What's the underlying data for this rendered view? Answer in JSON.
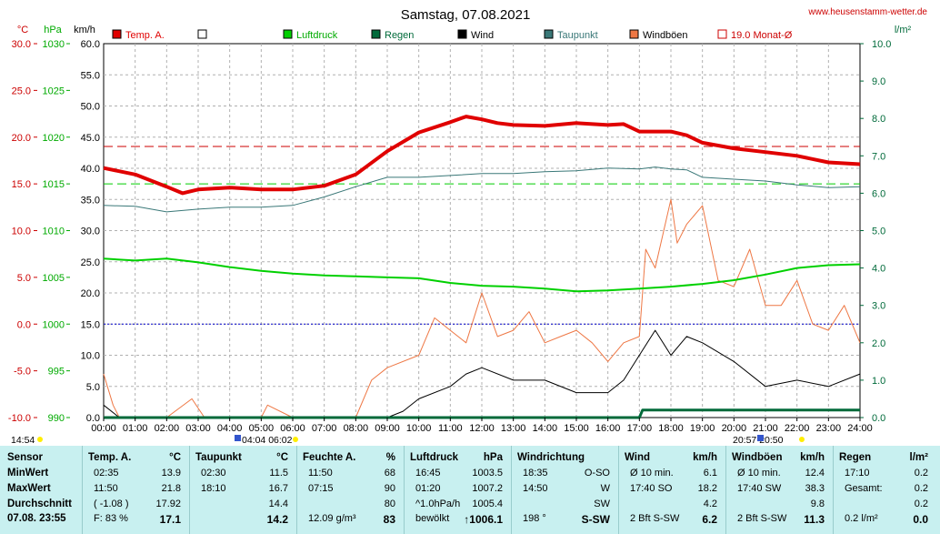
{
  "title": "Samstag, 07.08.2021",
  "site": "www.heusenstamm-wetter.de",
  "units": {
    "left1": "°C",
    "left2": "hPa",
    "left3": "km/h",
    "right": "l/m²"
  },
  "legend": [
    {
      "label": "Temp. A.",
      "color": "#e00000"
    },
    {
      "label": "",
      "color": "#ffffff"
    },
    {
      "label": "Luftdruck",
      "color": "#00d000"
    },
    {
      "label": "Regen",
      "color": "#006a3a"
    },
    {
      "label": "Wind",
      "color": "#000000"
    },
    {
      "label": "Taupunkt",
      "color": "#3a7878"
    },
    {
      "label": "Windböen",
      "color": "#ee7744"
    },
    {
      "label": "19.0 Monat-Ø",
      "color": "#cc0000"
    }
  ],
  "markers": {
    "left": "14:54",
    "sun": "04:04 06:02",
    "right": "20:57 20:50"
  },
  "chart_data": {
    "type": "line",
    "x_ticks": [
      "00:00",
      "01:00",
      "02:00",
      "03:00",
      "04:00",
      "05:00",
      "06:00",
      "07:00",
      "08:00",
      "09:00",
      "10:00",
      "11:00",
      "12:00",
      "13:00",
      "14:00",
      "15:00",
      "16:00",
      "17:00",
      "18:00",
      "19:00",
      "20:00",
      "21:00",
      "22:00",
      "23:00",
      "24:00"
    ],
    "axes": {
      "temp_c": {
        "ticks": [
          "30.0",
          "25.0",
          "20.0",
          "15.0",
          "10.0",
          "5.0",
          "0.0",
          "-5.0",
          "-10.0"
        ],
        "range": [
          -10,
          30
        ]
      },
      "pressure_hpa": {
        "ticks": [
          "1030",
          "1025",
          "1020",
          "1015",
          "1010",
          "1005",
          "1000",
          "995",
          "990"
        ],
        "range": [
          990,
          1030
        ]
      },
      "wind_kmh": {
        "ticks": [
          "60.0",
          "55.0",
          "50.0",
          "45.0",
          "40.0",
          "35.0",
          "30.0",
          "25.0",
          "20.0",
          "15.0",
          "10.0",
          "5.0",
          "0.0"
        ],
        "range": [
          0,
          60
        ]
      },
      "rain_lm2": {
        "ticks": [
          "10.0",
          "9.0",
          "8.0",
          "7.0",
          "6.0",
          "5.0",
          "4.0",
          "3.0",
          "2.0",
          "1.0",
          "0.0"
        ],
        "range": [
          0,
          10
        ]
      }
    },
    "reference_lines": [
      {
        "name": "19.0 Monat-Ø",
        "temp_c": 19.0
      },
      {
        "temp_c": 15.0
      },
      {
        "temp_c": 0.0
      }
    ],
    "series": [
      {
        "name": "Temp. A.",
        "unit": "°C",
        "x": [
          0,
          1,
          2,
          2.5,
          3,
          4,
          5,
          6,
          7,
          8,
          9,
          10,
          11,
          11.5,
          12,
          12.5,
          13,
          14,
          15,
          16,
          16.5,
          17,
          18,
          18.5,
          19,
          20,
          21,
          22,
          23,
          24
        ],
        "y": [
          16.7,
          16.0,
          14.7,
          14.0,
          14.4,
          14.6,
          14.4,
          14.4,
          14.8,
          16.0,
          18.5,
          20.5,
          21.6,
          22.2,
          21.9,
          21.5,
          21.3,
          21.2,
          21.5,
          21.3,
          21.4,
          20.6,
          20.6,
          20.2,
          19.4,
          18.8,
          18.4,
          18.0,
          17.3,
          17.1
        ]
      },
      {
        "name": "Taupunkt",
        "unit": "°C",
        "x": [
          0,
          1,
          2,
          3,
          4,
          5,
          6,
          7,
          8,
          9,
          10,
          11,
          12,
          13,
          14,
          15,
          16,
          17,
          17.5,
          18,
          18.5,
          19,
          20,
          21,
          22,
          23,
          24
        ],
        "y": [
          12.7,
          12.6,
          12.0,
          12.3,
          12.5,
          12.5,
          12.7,
          13.6,
          14.7,
          15.7,
          15.7,
          15.9,
          16.1,
          16.1,
          16.3,
          16.4,
          16.7,
          16.6,
          16.8,
          16.6,
          16.5,
          15.7,
          15.5,
          15.3,
          14.9,
          14.6,
          14.7
        ]
      },
      {
        "name": "Luftdruck",
        "unit": "hPa",
        "x": [
          0,
          1,
          2,
          3,
          4,
          5,
          6,
          7,
          8,
          9,
          10,
          11,
          12,
          13,
          14,
          15,
          16,
          16.5,
          17,
          18,
          19,
          20,
          21,
          22,
          23,
          24
        ],
        "y": [
          1007.0,
          1006.8,
          1007.0,
          1006.6,
          1006.1,
          1005.7,
          1005.4,
          1005.2,
          1005.1,
          1005.0,
          1004.9,
          1004.4,
          1004.1,
          1004.0,
          1003.8,
          1003.5,
          1003.6,
          1003.7,
          1003.8,
          1004.0,
          1004.3,
          1004.7,
          1005.3,
          1006.0,
          1006.3,
          1006.4
        ]
      },
      {
        "name": "Wind",
        "unit": "km/h",
        "x": [
          0,
          0.5,
          1,
          2,
          3,
          4,
          5,
          6,
          7,
          8,
          9,
          9.5,
          10,
          11,
          11.5,
          12,
          13,
          14,
          15,
          16,
          16.5,
          17,
          17.5,
          18,
          18.5,
          19,
          20,
          21,
          22,
          23,
          24
        ],
        "y": [
          2,
          0,
          0,
          0,
          0,
          0,
          0,
          0,
          0,
          0,
          0,
          1,
          3,
          5,
          7,
          8,
          6,
          6,
          4,
          4,
          6,
          10,
          14,
          10,
          13,
          12,
          9,
          5,
          6,
          5,
          7
        ]
      },
      {
        "name": "Windböen",
        "unit": "km/h",
        "x": [
          0,
          0.3,
          0.5,
          1,
          2,
          2.8,
          3.2,
          4,
          5,
          5.2,
          6,
          7,
          8,
          8.5,
          9,
          10,
          10.5,
          11,
          11.5,
          12,
          12.5,
          13,
          13.5,
          14,
          14.5,
          15,
          15.5,
          16,
          16.5,
          17,
          17.2,
          17.5,
          18,
          18.2,
          18.5,
          19,
          19.5,
          20,
          20.5,
          21,
          21.5,
          22,
          22.5,
          23,
          23.5,
          24
        ],
        "y": [
          7,
          2,
          0,
          0,
          0,
          3,
          0,
          0,
          0,
          2,
          0,
          0,
          0,
          6,
          8,
          10,
          16,
          14,
          12,
          20,
          13,
          14,
          17,
          12,
          13,
          14,
          12,
          9,
          12,
          13,
          27,
          24,
          35,
          28,
          31,
          34,
          22,
          21,
          27,
          18,
          18,
          22,
          15,
          14,
          18,
          12
        ]
      },
      {
        "name": "Regen",
        "unit": "l/m²",
        "x": [
          0,
          17,
          17.1,
          24
        ],
        "y": [
          0,
          0,
          0.2,
          0.2
        ]
      }
    ]
  },
  "table": {
    "row_labels": {
      "min": "MinWert",
      "max": "MaxWert",
      "avg": "Durchschnitt",
      "cur": "07.08. 23:55"
    },
    "sensor_header": "Sensor",
    "cols": [
      {
        "h1": "Temp. A.",
        "h2": "°C",
        "rows": [
          [
            "02:35",
            "13.9"
          ],
          [
            "11:50",
            "21.8"
          ],
          [
            "( -1.08 )",
            "17.92"
          ],
          [
            "F: 83 %",
            "17.1"
          ]
        ]
      },
      {
        "h1": "Taupunkt",
        "h2": "°C",
        "rows": [
          [
            "02:30",
            "11.5"
          ],
          [
            "18:10",
            "16.7"
          ],
          [
            "",
            "14.4"
          ],
          [
            "",
            "14.2"
          ]
        ]
      },
      {
        "h1": "Feuchte A.",
        "h2": "%",
        "rows": [
          [
            "11:50",
            "68"
          ],
          [
            "07:15",
            "90"
          ],
          [
            "",
            "80"
          ],
          [
            "12.09 g/m³",
            "83"
          ]
        ]
      },
      {
        "h1": "Luftdruck",
        "h2": "hPa",
        "rows": [
          [
            "16:45",
            "1003.5"
          ],
          [
            "01:20",
            "1007.2"
          ],
          [
            "^1.0hPa/h",
            "1005.4"
          ],
          [
            "bewölkt",
            "↑1006.1"
          ]
        ]
      },
      {
        "h1": "Windrichtung",
        "h2": "",
        "rows": [
          [
            "18:35",
            "O-SO"
          ],
          [
            "14:50",
            "W"
          ],
          [
            "",
            "SW"
          ],
          [
            "198 °",
            "S-SW"
          ]
        ]
      },
      {
        "h1": "Wind",
        "h2": "km/h",
        "rows": [
          [
            "Ø 10 min.",
            "6.1"
          ],
          [
            "17:40    SO",
            "18.2"
          ],
          [
            "",
            "4.2"
          ],
          [
            "2 Bft S-SW",
            "6.2"
          ]
        ]
      },
      {
        "h1": "Windböen",
        "h2": "km/h",
        "rows": [
          [
            "Ø 10 min.",
            "12.4"
          ],
          [
            "17:40    SW",
            "38.3"
          ],
          [
            "",
            "9.8"
          ],
          [
            "2 Bft S-SW",
            "11.3"
          ]
        ]
      },
      {
        "h1": "Regen",
        "h2": "l/m²",
        "rows": [
          [
            "17:10",
            "0.2"
          ],
          [
            "Gesamt:",
            "0.2"
          ],
          [
            "",
            "0.2"
          ],
          [
            "0.2 l/m²",
            "0.0"
          ]
        ]
      }
    ]
  }
}
